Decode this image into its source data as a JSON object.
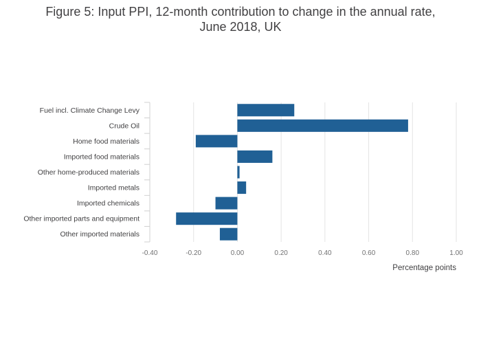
{
  "chart_data": {
    "type": "bar",
    "orientation": "horizontal",
    "title_line1": "Figure 5: Input PPI, 12-month contribution to change in the annual rate,",
    "title_line2": "June 2018, UK",
    "xlabel": "Percentage points",
    "ylabel": "",
    "xlim": [
      -0.4,
      1.0
    ],
    "ticks": [
      "-0.40",
      "-0.20",
      "0.00",
      "0.20",
      "0.40",
      "0.60",
      "0.80",
      "1.00"
    ],
    "tick_values": [
      -0.4,
      -0.2,
      0.0,
      0.2,
      0.4,
      0.6,
      0.8,
      1.0
    ],
    "categories": [
      "Fuel incl. Climate Change Levy",
      "Crude Oil",
      "Home food materials",
      "Imported food materials",
      "Other home-produced materials",
      "Imported metals",
      "Imported chemicals",
      "Other imported parts and equipment",
      "Other imported materials"
    ],
    "values": [
      0.26,
      0.78,
      -0.19,
      0.16,
      0.01,
      0.04,
      -0.1,
      -0.28,
      -0.08
    ],
    "bar_color": "#206095",
    "grid": true,
    "legend": "none"
  }
}
